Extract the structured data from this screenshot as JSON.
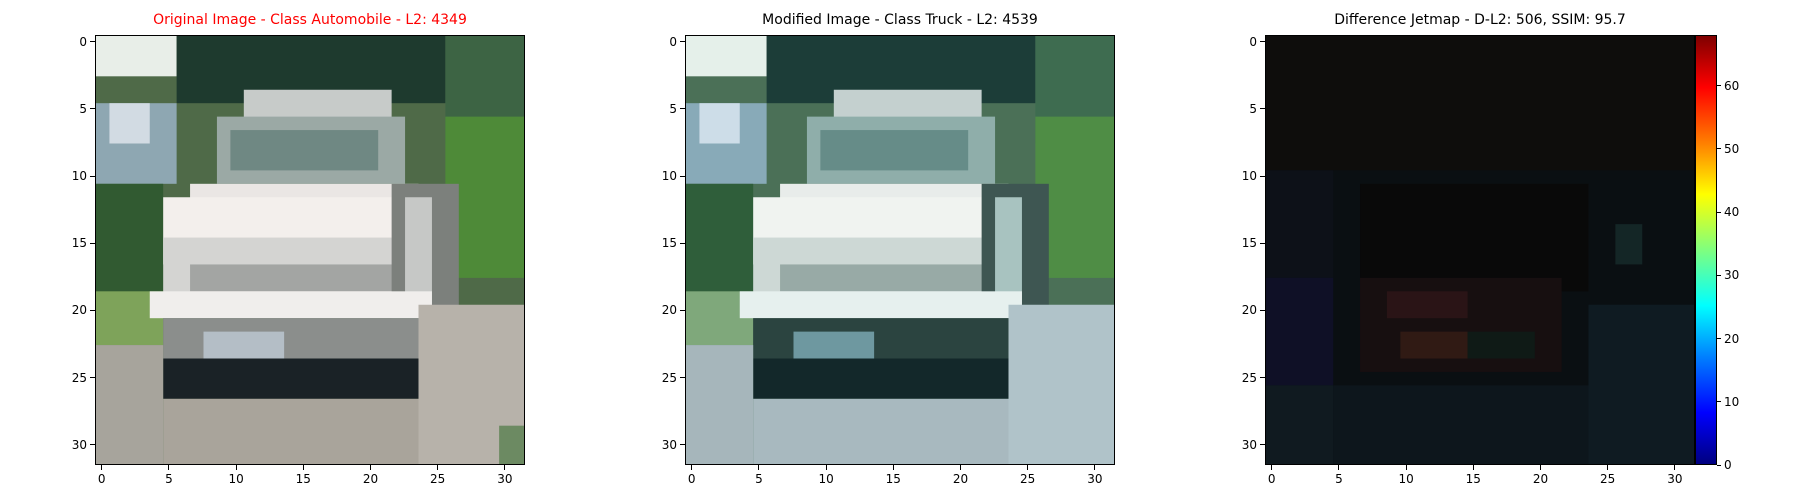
{
  "chart_data": [
    {
      "type": "heatmap",
      "title": "Original Image - Class Automobile - L2: 4349",
      "title_color": "#ff0000",
      "xticks": [
        "0",
        "5",
        "10",
        "15",
        "20",
        "25",
        "30"
      ],
      "yticks": [
        "0",
        "5",
        "10",
        "15",
        "20",
        "25",
        "30"
      ],
      "xlim": [
        -0.5,
        31.5
      ],
      "ylim": [
        31.5,
        -0.5
      ],
      "image_size": [
        32,
        32
      ],
      "content": "photo of white car"
    },
    {
      "type": "heatmap",
      "title": "Modified Image - Class Truck - L2: 4539",
      "title_color": "#000000",
      "xticks": [
        "0",
        "5",
        "10",
        "15",
        "20",
        "25",
        "30"
      ],
      "yticks": [
        "0",
        "5",
        "10",
        "15",
        "20",
        "25",
        "30"
      ],
      "xlim": [
        -0.5,
        31.5
      ],
      "ylim": [
        31.5,
        -0.5
      ],
      "image_size": [
        32,
        32
      ],
      "content": "bluish-tinted photo of white car"
    },
    {
      "type": "heatmap",
      "title": "Difference Jetmap - D-L2: 506, SSIM: 95.7",
      "title_color": "#000000",
      "xticks": [
        "0",
        "5",
        "10",
        "15",
        "20",
        "25",
        "30"
      ],
      "yticks": [
        "0",
        "5",
        "10",
        "15",
        "20",
        "25",
        "30"
      ],
      "xlim": [
        -0.5,
        31.5
      ],
      "ylim": [
        31.5,
        -0.5
      ],
      "image_size": [
        32,
        32
      ],
      "colorbar": {
        "colormap": "jet",
        "range": [
          0,
          68
        ],
        "ticks": [
          "0",
          "10",
          "20",
          "30",
          "40",
          "50",
          "60"
        ]
      }
    }
  ]
}
